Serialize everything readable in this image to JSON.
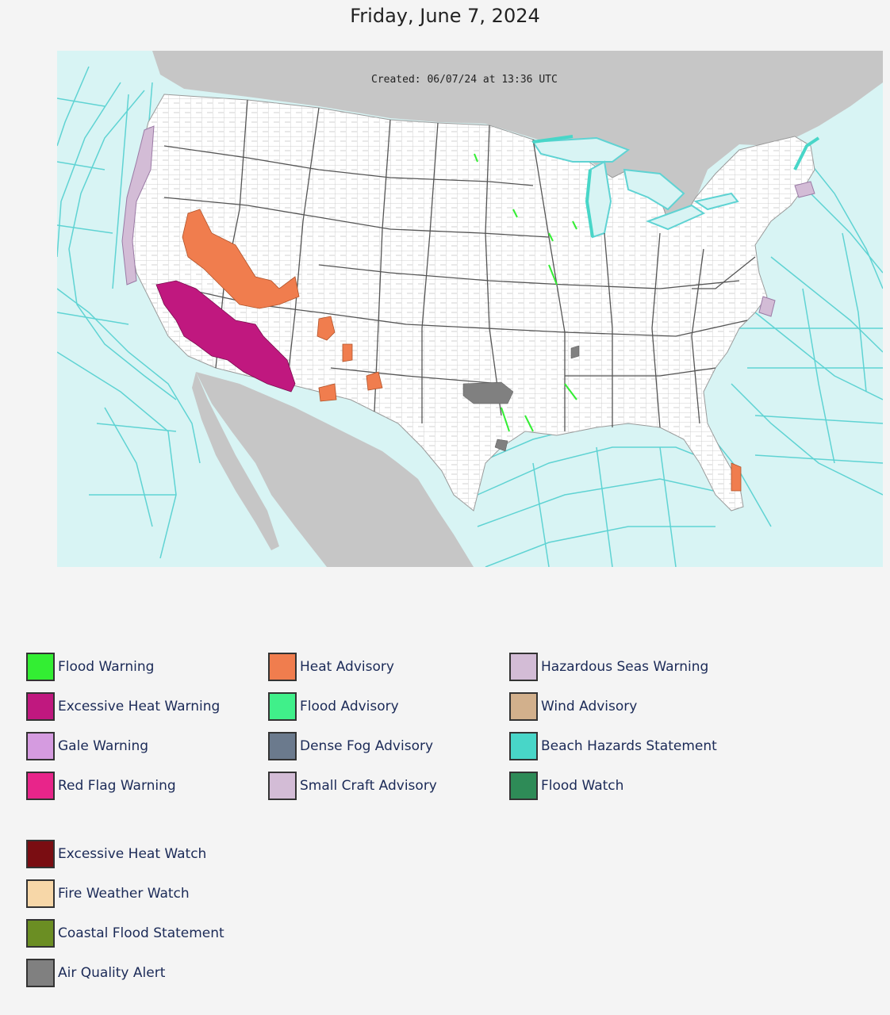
{
  "title": "Friday, June 7, 2024",
  "map": {
    "created_text": "Created: 06/07/24 at 13:36 UTC",
    "colors": {
      "ocean": "#d8f4f4",
      "land_foreign": "#c6c6c6",
      "land_us": "#ffffff",
      "marine_zone_line": "#5fd3d3",
      "county_line": "#b5b5b5"
    }
  },
  "legend": {
    "col1": [
      {
        "label": "Flood Warning",
        "color": "#33ee33"
      },
      {
        "label": "Excessive Heat Warning",
        "color": "#c0187f"
      },
      {
        "label": "Gale Warning",
        "color": "#d59be0"
      },
      {
        "label": "Red Flag Warning",
        "color": "#e8258a"
      }
    ],
    "col2": [
      {
        "label": "Heat Advisory",
        "color": "#f07d4e"
      },
      {
        "label": "Flood Advisory",
        "color": "#40f08a"
      },
      {
        "label": "Dense Fog Advisory",
        "color": "#6b7a8d"
      },
      {
        "label": "Small Craft Advisory",
        "color": "#d3bcd6"
      }
    ],
    "col3": [
      {
        "label": "Hazardous Seas Warning",
        "color": "#d3bcd6"
      },
      {
        "label": "Wind Advisory",
        "color": "#d2b08c"
      },
      {
        "label": "Beach Hazards Statement",
        "color": "#48d6c8"
      },
      {
        "label": "Flood Watch",
        "color": "#2e8b57"
      }
    ],
    "col1b": [
      {
        "label": "Excessive Heat Watch",
        "color": "#7a0d12"
      },
      {
        "label": "Fire Weather Watch",
        "color": "#f7d7a8"
      },
      {
        "label": "Coastal Flood Statement",
        "color": "#6b8e23"
      },
      {
        "label": "Air Quality Alert",
        "color": "#808080"
      }
    ]
  }
}
